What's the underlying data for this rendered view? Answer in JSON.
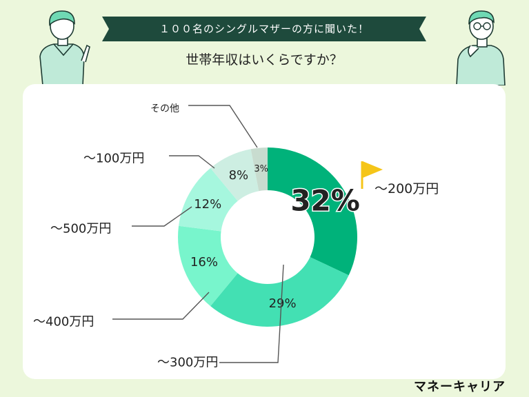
{
  "header": {
    "banner": "１００名のシングルマザーの方に聞いた！",
    "question": "世帯年収はいくらですか？"
  },
  "brand": "マネーキャリア",
  "colors": {
    "background": "#ecf7dc",
    "banner": "#1e4a3c",
    "flag": "#f5c518",
    "segments": [
      "#00b27a",
      "#43e0b3",
      "#78f5cc",
      "#a6f7de",
      "#cdeee2",
      "#c8dccf"
    ]
  },
  "chart_data": {
    "type": "donut",
    "categories": [
      "〜200万円",
      "〜300万円",
      "〜400万円",
      "〜500万円",
      "〜100万円",
      "その他"
    ],
    "values": [
      32,
      29,
      16,
      12,
      8,
      3
    ],
    "value_labels": [
      "32%",
      "29%",
      "16%",
      "12%",
      "8%",
      "3%"
    ],
    "unit": "%",
    "highlight": "〜200万円"
  }
}
